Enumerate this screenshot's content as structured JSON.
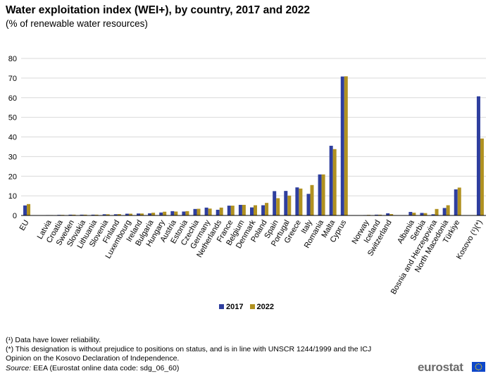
{
  "title": "Water exploitation index (WEI+), by country, 2017 and 2022",
  "subtitle": "(% of renewable water resources)",
  "chart_data": {
    "type": "bar",
    "title": "Water exploitation index (WEI+), by country, 2017 and 2022",
    "subtitle": "(% of renewable water resources)",
    "xlabel": "",
    "ylabel": "",
    "ylim": [
      0,
      80
    ],
    "yticks": [
      "0",
      "10",
      "20",
      "30",
      "40",
      "50",
      "60",
      "70",
      "80"
    ],
    "grid": true,
    "legend_position": "bottom",
    "categories": [
      "EU",
      "",
      "Latvia",
      "Croatia",
      "Sweden",
      "Slovakia",
      "Lithuania",
      "Slovenia",
      "Finland",
      "Luxembourg",
      "Ireland",
      "Bulgaria",
      "Hungary",
      "Austria",
      "Estonia",
      "Czechia",
      "Germany",
      "Netherlands",
      "France",
      "Belgium",
      "Denmark",
      "Poland",
      "Spain",
      "Portugal",
      "Greece",
      "Italy",
      "Romania",
      "Malta",
      "Cyprus",
      "",
      "Norway",
      "Iceland",
      "Switzerland",
      "",
      "Albania",
      "Serbia",
      "Bosnia and Herzegovina",
      "North Macedonia",
      "Türkiye",
      "",
      "Kosovo (¹)(*)"
    ],
    "series": [
      {
        "name": "2017",
        "color": "#2E3E9E",
        "values": [
          5.1,
          null,
          0.2,
          0.3,
          0.4,
          0.4,
          0.4,
          0.6,
          0.6,
          0.9,
          1.0,
          1.1,
          1.5,
          2.2,
          2.0,
          3.3,
          4.0,
          2.9,
          5.0,
          5.4,
          4.1,
          5.2,
          12.4,
          12.5,
          14.3,
          11.0,
          20.9,
          35.5,
          70.8,
          null,
          0.2,
          0.4,
          1.1,
          null,
          1.8,
          1.3,
          0.6,
          3.8,
          13.3,
          null,
          60.7
        ]
      },
      {
        "name": "2022",
        "color": "#B09120",
        "values": [
          5.8,
          null,
          0.2,
          0.3,
          0.4,
          0.4,
          0.4,
          0.6,
          0.7,
          0.9,
          1.0,
          1.4,
          1.9,
          2.0,
          2.2,
          3.4,
          3.5,
          4.0,
          5.0,
          5.4,
          5.2,
          6.4,
          8.8,
          10.1,
          13.7,
          15.5,
          20.9,
          33.8,
          70.9,
          null,
          0.3,
          0.4,
          0.7,
          null,
          1.4,
          1.2,
          3.3,
          5.2,
          14.2,
          null,
          39.2
        ]
      }
    ]
  },
  "legend": [
    {
      "label": "2017",
      "color": "#2E3E9E"
    },
    {
      "label": "2022",
      "color": "#B09120"
    }
  ],
  "notes": {
    "note1": "(¹) Data have lower reliability.",
    "note2": "(*) This designation is without prejudice to positions on status, and is in line with UNSCR 1244/1999 and the ICJ",
    "note3": "Opinion on the Kosovo Declaration of Independence.",
    "source_label": "Source:",
    "source_text": " EEA (Eurostat online data code: sdg_06_60)"
  },
  "logo": {
    "text": "eurostat",
    "flag_color": "#0E47CB",
    "star_color": "#FFDD00"
  }
}
